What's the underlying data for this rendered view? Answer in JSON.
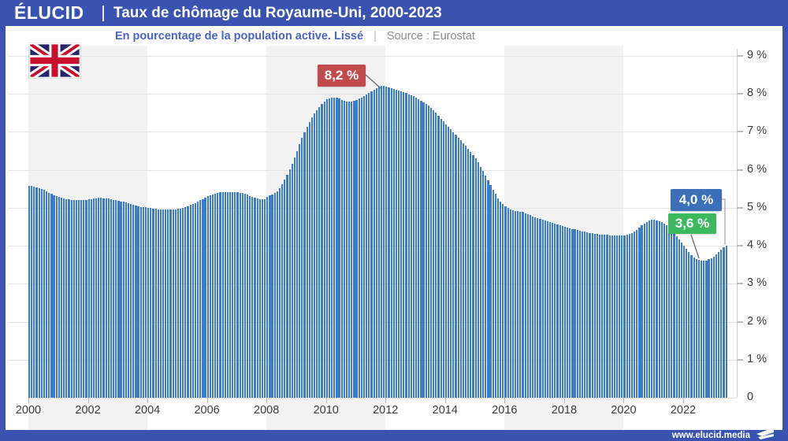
{
  "header": {
    "brand": "ÉLUCID",
    "title": "Taux de chômage du Royaume-Uni, 2000-2023"
  },
  "subtitle": {
    "description": "En pourcentage de la population active. Lissé",
    "separator": "|",
    "source": "Source : Eurostat"
  },
  "footer": {
    "url": "www.elucid.media"
  },
  "icons": {
    "flag": "uk-union-jack-flag",
    "footer_logo": "elucid-flag-logo"
  },
  "colors": {
    "header_blue": "#3B53B0",
    "bar_blue": "#3D7CC9",
    "badge_blue": "#3B6FB8",
    "badge_green": "#3CB85F",
    "badge_red": "#C14A4C",
    "subtitle_blue": "#4A63C5",
    "stripe_gray": "#F2F2F3"
  },
  "chart_data": {
    "type": "bar",
    "title": "Taux de chômage du Royaume-Uni, 2000-2023",
    "subtitle": "En pourcentage de la population active. Lissé",
    "source": "Source : Eurostat",
    "unit": "%",
    "xlim": [
      2000,
      2023.5
    ],
    "ylim": [
      0,
      9
    ],
    "x_ticks": [
      "2000",
      "2002",
      "2004",
      "2006",
      "2008",
      "2010",
      "2012",
      "2014",
      "2016",
      "2018",
      "2020",
      "2022"
    ],
    "y_ticks": [
      "9 %",
      "8 %",
      "7 %",
      "6 %",
      "5 %",
      "4 %",
      "3 %",
      "2 %",
      "1 %",
      "0"
    ],
    "layout": {
      "y_axis_side": "right",
      "grid": "horizontal",
      "shaded_year_bands": [
        [
          2000,
          2004
        ],
        [
          2008,
          2012
        ],
        [
          2016,
          2020
        ]
      ]
    },
    "series_points": [
      [
        2000.0,
        5.58
      ],
      [
        2000.4,
        5.5
      ],
      [
        2000.8,
        5.35
      ],
      [
        2001.2,
        5.24
      ],
      [
        2001.6,
        5.2
      ],
      [
        2002.0,
        5.22
      ],
      [
        2002.4,
        5.26
      ],
      [
        2002.8,
        5.22
      ],
      [
        2003.2,
        5.15
      ],
      [
        2003.6,
        5.05
      ],
      [
        2004.0,
        5.0
      ],
      [
        2004.5,
        4.95
      ],
      [
        2005.0,
        4.97
      ],
      [
        2005.5,
        5.1
      ],
      [
        2006.0,
        5.3
      ],
      [
        2006.4,
        5.4
      ],
      [
        2006.8,
        5.42
      ],
      [
        2007.2,
        5.38
      ],
      [
        2007.6,
        5.26
      ],
      [
        2007.9,
        5.22
      ],
      [
        2008.0,
        5.28
      ],
      [
        2008.4,
        5.5
      ],
      [
        2008.8,
        6.1
      ],
      [
        2009.2,
        6.9
      ],
      [
        2009.6,
        7.5
      ],
      [
        2010.0,
        7.85
      ],
      [
        2010.3,
        7.9
      ],
      [
        2010.7,
        7.79
      ],
      [
        2011.1,
        7.88
      ],
      [
        2011.5,
        8.07
      ],
      [
        2011.8,
        8.2
      ],
      [
        2012.1,
        8.17
      ],
      [
        2012.5,
        8.07
      ],
      [
        2013.0,
        7.9
      ],
      [
        2013.5,
        7.63
      ],
      [
        2014.0,
        7.2
      ],
      [
        2014.5,
        6.78
      ],
      [
        2015.0,
        6.3
      ],
      [
        2015.4,
        5.75
      ],
      [
        2015.8,
        5.2
      ],
      [
        2016.2,
        4.95
      ],
      [
        2016.6,
        4.88
      ],
      [
        2017.0,
        4.75
      ],
      [
        2017.5,
        4.62
      ],
      [
        2018.0,
        4.5
      ],
      [
        2018.5,
        4.4
      ],
      [
        2019.0,
        4.32
      ],
      [
        2019.5,
        4.28
      ],
      [
        2019.9,
        4.27
      ],
      [
        2020.3,
        4.35
      ],
      [
        2020.6,
        4.55
      ],
      [
        2020.9,
        4.68
      ],
      [
        2021.1,
        4.67
      ],
      [
        2021.4,
        4.55
      ],
      [
        2021.7,
        4.3
      ],
      [
        2022.0,
        4.0
      ],
      [
        2022.3,
        3.72
      ],
      [
        2022.6,
        3.6
      ],
      [
        2022.9,
        3.67
      ],
      [
        2023.1,
        3.78
      ],
      [
        2023.42,
        4.0
      ]
    ],
    "annotations": [
      {
        "label": "8,2 %",
        "value": 8.2,
        "at_year": 2011.8,
        "color": "#C14A4C"
      },
      {
        "label": "4,0 %",
        "value": 4.0,
        "at_year": 2023.4,
        "color": "#3B6FB8"
      },
      {
        "label": "3,6 %",
        "value": 3.6,
        "at_year": 2022.6,
        "color": "#3CB85F"
      }
    ]
  }
}
